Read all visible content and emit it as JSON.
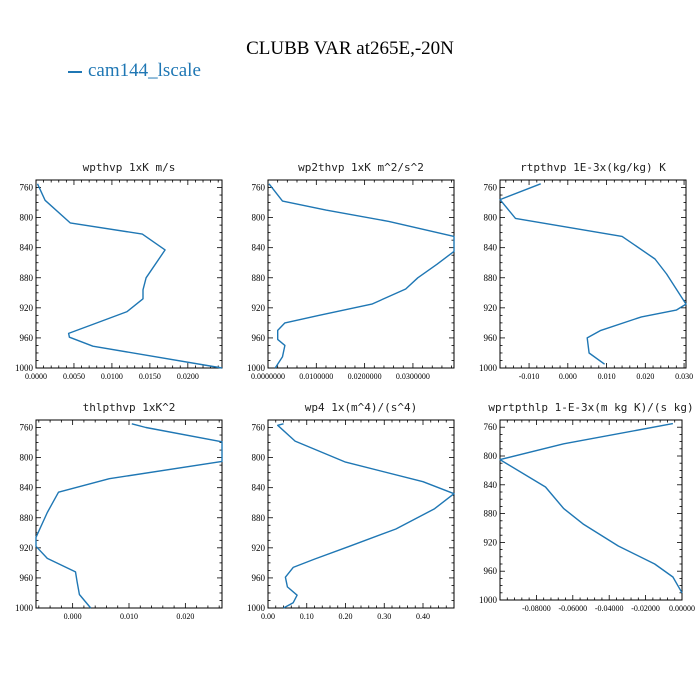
{
  "title": "CLUBB VAR at265E,-20N",
  "legend": {
    "label": "cam144_lscale",
    "color": "#1f77b4"
  },
  "chart_data": [
    {
      "type": "line",
      "title": "wpthvp   1xK m/s",
      "xlim": [
        0.0,
        0.0245
      ],
      "ylim": [
        1000,
        750
      ],
      "xticks": [
        0.0,
        0.005,
        0.01,
        0.015,
        0.02
      ],
      "xtick_labels": [
        "0.0000",
        "0.0050",
        "0.0100",
        "0.0150",
        "0.0200"
      ],
      "yticks": [
        760,
        800,
        840,
        880,
        920,
        960,
        1000
      ],
      "series": [
        {
          "name": "cam144_lscale",
          "x": [
            0.0002,
            0.0012,
            0.0045,
            0.014,
            0.017,
            0.0145,
            0.0141,
            0.0141,
            0.012,
            0.0075,
            0.0043,
            0.0044,
            0.0075,
            0.0245
          ],
          "y": [
            755,
            777,
            807,
            822,
            843,
            880,
            896,
            908,
            925,
            942,
            954,
            959,
            971,
            1000
          ]
        }
      ]
    },
    {
      "type": "line",
      "title": "wp2thvp   1xK m^2/s^2",
      "xlim": [
        0.0,
        0.0385
      ],
      "ylim": [
        1000,
        750
      ],
      "xticks": [
        0.0,
        0.01,
        0.02,
        0.03
      ],
      "xtick_labels": [
        "0.0000000",
        "0.0100000",
        "0.0200000",
        "0.0300000"
      ],
      "yticks": [
        760,
        800,
        840,
        880,
        920,
        960,
        1000
      ],
      "series": [
        {
          "name": "cam144_lscale",
          "x": [
            0.0002,
            0.003,
            0.012,
            0.025,
            0.0385,
            0.0385,
            0.035,
            0.031,
            0.0285,
            0.0215,
            0.0105,
            0.0035,
            0.002,
            0.002,
            0.0035,
            0.003,
            0.0015
          ],
          "y": [
            755,
            778,
            790,
            805,
            825,
            845,
            862,
            880,
            895,
            915,
            930,
            940,
            950,
            962,
            970,
            985,
            1000
          ]
        }
      ]
    },
    {
      "type": "line",
      "title": "rtpthvp   1E-3x(kg/kg) K",
      "xlim": [
        -0.0175,
        0.0305
      ],
      "ylim": [
        1000,
        750
      ],
      "xticks": [
        -0.01,
        0.0,
        0.01,
        0.02,
        0.03
      ],
      "xtick_labels": [
        "-0.010",
        "0.000",
        "0.010",
        "0.020",
        "0.030"
      ],
      "yticks": [
        760,
        800,
        840,
        880,
        920,
        960,
        1000
      ],
      "series": [
        {
          "name": "cam144_lscale",
          "x": [
            -0.007,
            -0.0175,
            -0.0135,
            0.014,
            0.0225,
            0.0255,
            0.0305,
            0.028,
            0.019,
            0.0085,
            0.005,
            0.0055,
            0.0095
          ],
          "y": [
            755,
            776,
            801,
            825,
            855,
            875,
            915,
            923,
            932,
            950,
            960,
            980,
            995
          ]
        }
      ]
    },
    {
      "type": "line",
      "title": "thlpthvp   1xK^2",
      "xlim": [
        -0.0065,
        0.0265
      ],
      "ylim": [
        1000,
        750
      ],
      "xticks": [
        0.0,
        0.01,
        0.02
      ],
      "xtick_labels": [
        "0.000",
        "0.010",
        "0.020"
      ],
      "yticks": [
        760,
        800,
        840,
        880,
        920,
        960,
        1000
      ],
      "series": [
        {
          "name": "cam144_lscale",
          "x": [
            0.0105,
            0.013,
            0.0265,
            0.0265,
            0.0065,
            -0.0025,
            -0.0045,
            -0.0065,
            -0.0065,
            -0.0045,
            0.0005,
            0.0008,
            0.0012,
            0.0032
          ],
          "y": [
            755,
            760,
            779,
            805,
            828,
            846,
            873,
            906,
            918,
            934,
            952,
            965,
            982,
            1000
          ]
        }
      ]
    },
    {
      "type": "line",
      "title": "wp4   1x(m^4)/(s^4)",
      "xlim": [
        0.0,
        0.48
      ],
      "ylim": [
        1000,
        750
      ],
      "xticks": [
        0.0,
        0.1,
        0.2,
        0.3,
        0.4
      ],
      "xtick_labels": [
        "0.00",
        "0.10",
        "0.20",
        "0.30",
        "0.40"
      ],
      "yticks": [
        760,
        800,
        840,
        880,
        920,
        960,
        1000
      ],
      "series": [
        {
          "name": "cam144_lscale",
          "x": [
            0.04,
            0.025,
            0.07,
            0.2,
            0.4,
            0.48,
            0.43,
            0.33,
            0.21,
            0.12,
            0.065,
            0.045,
            0.05,
            0.075,
            0.065,
            0.04
          ],
          "y": [
            755,
            757,
            778,
            806,
            832,
            848,
            868,
            895,
            918,
            935,
            946,
            959,
            972,
            983,
            993,
            1000
          ]
        }
      ]
    },
    {
      "type": "line",
      "title": "wprtpthlp   1-E-3x(m kg K)/(s kg)",
      "xlim": [
        -0.1,
        0.0
      ],
      "ylim": [
        1000,
        750
      ],
      "xticks": [
        -0.08,
        -0.06,
        -0.04,
        -0.02,
        0.0
      ],
      "xtick_labels": [
        "-0.08000",
        "-0.06000",
        "-0.04000",
        "-0.02000",
        "0.00000"
      ],
      "yticks": [
        760,
        800,
        840,
        880,
        920,
        960,
        1000
      ],
      "series": [
        {
          "name": "cam144_lscale",
          "x": [
            -0.005,
            -0.065,
            -0.1,
            -0.075,
            -0.065,
            -0.054,
            -0.035,
            -0.015,
            -0.005,
            0.0
          ],
          "y": [
            755,
            783,
            805,
            843,
            873,
            895,
            925,
            950,
            968,
            990
          ]
        }
      ]
    }
  ]
}
